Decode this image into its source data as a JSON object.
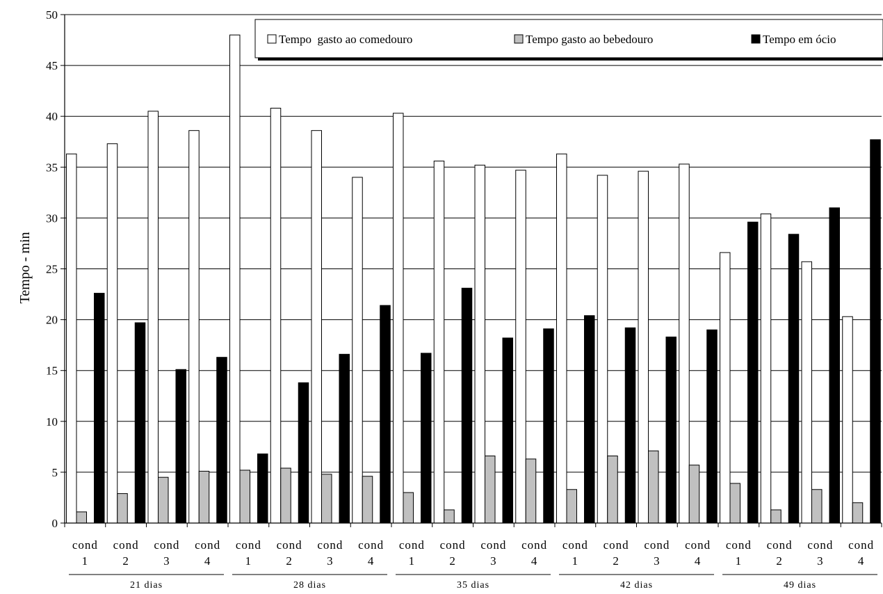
{
  "chart_data": {
    "type": "bar",
    "ylabel": "Tempo - min",
    "ylim": [
      0,
      50
    ],
    "yticks": [
      "0",
      "5",
      "10",
      "15",
      "20",
      "25",
      "30",
      "35",
      "40",
      "45",
      "50"
    ],
    "grid": true,
    "legend_position": "top-right",
    "groups": [
      {
        "label": "21 dias",
        "categories": [
          {
            "l1": "cond",
            "l2": "1"
          },
          {
            "l1": "cond",
            "l2": "2"
          },
          {
            "l1": "cond",
            "l2": "3"
          },
          {
            "l1": "cond",
            "l2": "4"
          }
        ]
      },
      {
        "label": "28 dias",
        "categories": [
          {
            "l1": "cond",
            "l2": "1"
          },
          {
            "l1": "cond",
            "l2": "2"
          },
          {
            "l1": "cond",
            "l2": "3"
          },
          {
            "l1": "cond",
            "l2": "4"
          }
        ]
      },
      {
        "label": "35 dias",
        "categories": [
          {
            "l1": "cond",
            "l2": "1"
          },
          {
            "l1": "cond",
            "l2": "2"
          },
          {
            "l1": "cond",
            "l2": "3"
          },
          {
            "l1": "cond",
            "l2": "4"
          }
        ]
      },
      {
        "label": "42 dias",
        "categories": [
          {
            "l1": "cond",
            "l2": "1"
          },
          {
            "l1": "cond",
            "l2": "2"
          },
          {
            "l1": "cond",
            "l2": "3"
          },
          {
            "l1": "cond",
            "l2": "4"
          }
        ]
      },
      {
        "label": "49 dias",
        "categories": [
          {
            "l1": "cond",
            "l2": "1"
          },
          {
            "l1": "cond",
            "l2": "2"
          },
          {
            "l1": "cond",
            "l2": "3"
          },
          {
            "l1": "cond",
            "l2": "4"
          }
        ]
      }
    ],
    "series": [
      {
        "name": "Tempo  gasto ao comedouro",
        "color": "#ffffff",
        "values": [
          36.3,
          37.3,
          40.5,
          38.6,
          48.0,
          40.8,
          38.6,
          34.0,
          40.3,
          35.6,
          35.2,
          34.7,
          36.3,
          34.2,
          34.6,
          35.3,
          26.6,
          30.4,
          25.7,
          20.3
        ]
      },
      {
        "name": "Tempo gasto ao bebedouro",
        "color": "#c0c0c0",
        "values": [
          1.1,
          2.9,
          4.5,
          5.1,
          5.2,
          5.4,
          4.8,
          4.6,
          3.0,
          1.3,
          6.6,
          6.3,
          3.3,
          6.6,
          7.1,
          5.7,
          3.9,
          1.3,
          3.3,
          2.0
        ]
      },
      {
        "name": "Tempo em ócio",
        "color": "#000000",
        "values": [
          22.6,
          19.7,
          15.1,
          16.3,
          6.8,
          13.8,
          16.6,
          21.4,
          16.7,
          23.1,
          18.2,
          19.1,
          20.4,
          19.2,
          18.3,
          19.0,
          29.6,
          28.4,
          31.0,
          37.7
        ]
      }
    ]
  }
}
